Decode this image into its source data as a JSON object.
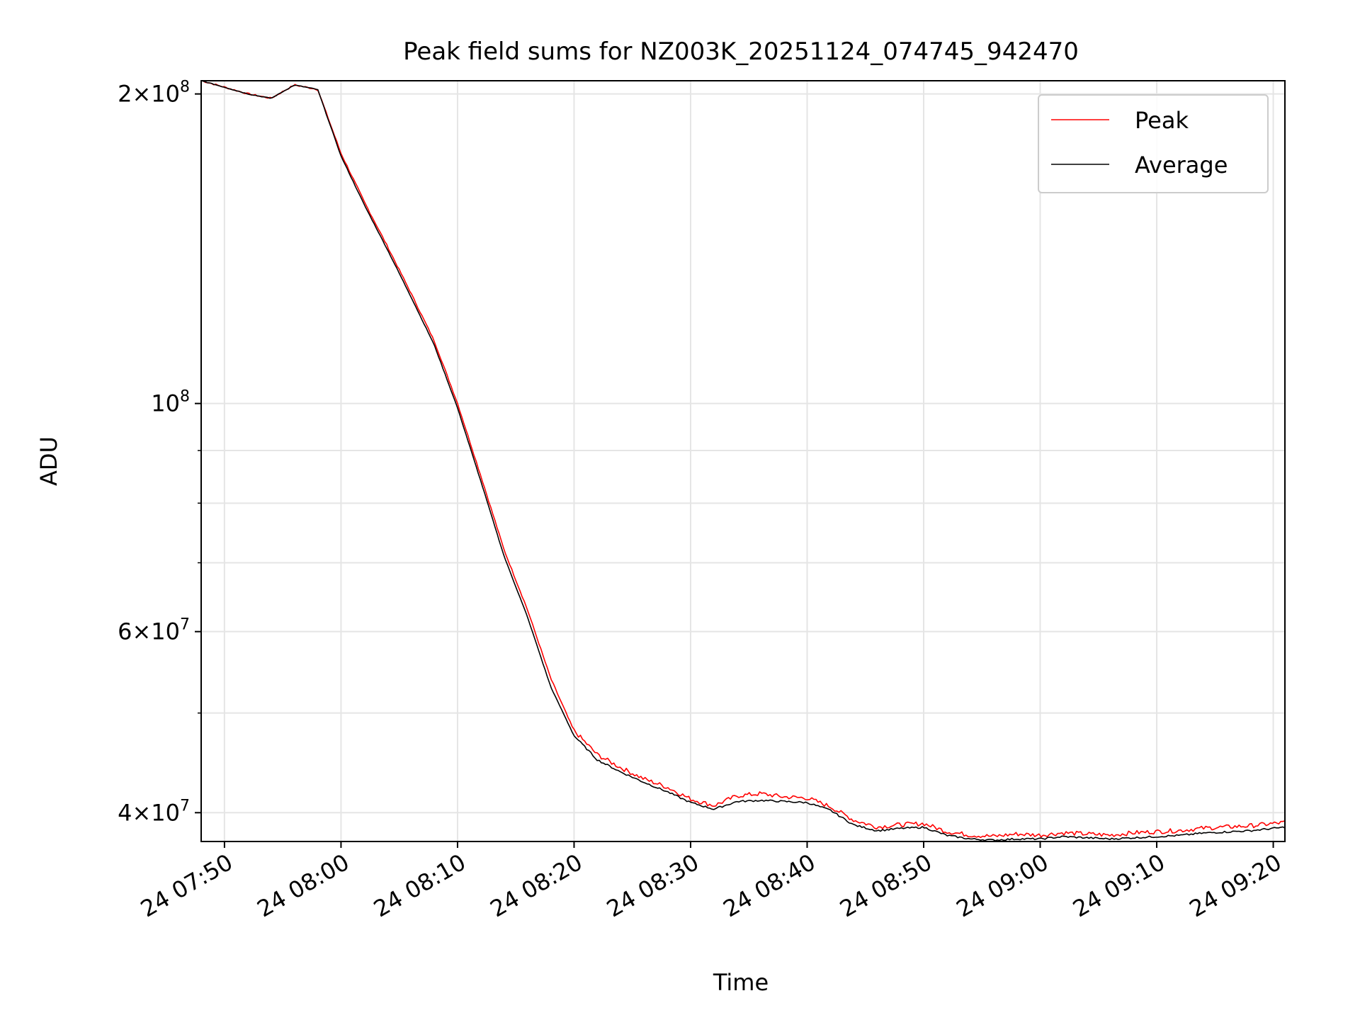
{
  "chart_data": {
    "type": "line",
    "title": "Peak field sums for NZ003K_20251124_074745_942470",
    "xlabel": "Time",
    "ylabel": "ADU",
    "yscale": "log",
    "xlim": [
      "07:48",
      "09:21"
    ],
    "ylim": [
      37500000,
      206000000
    ],
    "x_ticks": [
      "24 07:50",
      "24 08:00",
      "24 08:10",
      "24 08:20",
      "24 08:30",
      "24 08:40",
      "24 08:50",
      "24 09:00",
      "24 09:10",
      "24 09:20"
    ],
    "y_major_ticks": [
      {
        "value": 200000000,
        "mantissa": "2",
        "exp": "8"
      },
      {
        "value": 100000000,
        "mantissa": "",
        "exp": "8"
      },
      {
        "value": 60000000,
        "mantissa": "6",
        "exp": "7"
      },
      {
        "value": 40000000,
        "mantissa": "4",
        "exp": "7"
      }
    ],
    "y_minor_ticks": [
      50000000,
      70000000,
      80000000,
      90000000
    ],
    "grid": true,
    "legend": {
      "position": "top-right",
      "entries": [
        "Peak",
        "Average"
      ]
    },
    "colors": {
      "Peak": "#ff0000",
      "Average": "#000000",
      "grid": "#e5e5e5"
    },
    "series": [
      {
        "name": "Peak",
        "x": [
          "07:48",
          "07:50",
          "07:52",
          "07:54",
          "07:56",
          "07:58",
          "08:00",
          "08:02",
          "08:04",
          "08:06",
          "08:08",
          "08:10",
          "08:12",
          "08:14",
          "08:16",
          "08:18",
          "08:20",
          "08:22",
          "08:24",
          "08:26",
          "08:28",
          "08:30",
          "08:32",
          "08:34",
          "08:36",
          "08:38",
          "08:40",
          "08:42",
          "08:44",
          "08:46",
          "08:48",
          "08:50",
          "08:52",
          "08:54",
          "08:56",
          "08:58",
          "09:00",
          "09:02",
          "09:04",
          "09:06",
          "09:08",
          "09:10",
          "09:12",
          "09:14",
          "09:16",
          "09:18",
          "09:20",
          "09:21"
        ],
        "y": [
          206000000,
          203000000,
          200000000,
          198000000,
          204000000,
          202000000,
          175000000,
          157000000,
          142000000,
          128000000,
          115000000,
          100000000,
          85000000,
          72000000,
          63000000,
          54000000,
          48000000,
          45500000,
          44200000,
          43100000,
          42300000,
          41200000,
          40600000,
          41500000,
          41700000,
          41400000,
          41300000,
          40500000,
          39300000,
          38700000,
          38900000,
          39000000,
          38300000,
          38000000,
          37900000,
          38100000,
          38000000,
          38200000,
          38100000,
          38000000,
          38200000,
          38300000,
          38400000,
          38600000,
          38700000,
          38800000,
          39000000,
          39100000
        ]
      },
      {
        "name": "Average",
        "x": [
          "07:48",
          "07:50",
          "07:52",
          "07:54",
          "07:56",
          "07:58",
          "08:00",
          "08:02",
          "08:04",
          "08:06",
          "08:08",
          "08:10",
          "08:12",
          "08:14",
          "08:16",
          "08:18",
          "08:20",
          "08:22",
          "08:24",
          "08:26",
          "08:28",
          "08:30",
          "08:32",
          "08:34",
          "08:36",
          "08:38",
          "08:40",
          "08:42",
          "08:44",
          "08:46",
          "08:48",
          "08:50",
          "08:52",
          "08:54",
          "08:56",
          "08:58",
          "09:00",
          "09:02",
          "09:04",
          "09:06",
          "09:08",
          "09:10",
          "09:12",
          "09:14",
          "09:16",
          "09:18",
          "09:20",
          "09:21"
        ],
        "y": [
          206000000,
          203000000,
          200000000,
          198000000,
          204000000,
          202000000,
          174000000,
          156000000,
          141000000,
          127000000,
          114000000,
          99000000,
          84000000,
          71000000,
          62000000,
          53000000,
          47500000,
          45000000,
          43800000,
          42800000,
          41900000,
          40900000,
          40300000,
          41000000,
          41100000,
          41000000,
          40900000,
          40200000,
          38900000,
          38400000,
          38600000,
          38700000,
          38000000,
          37700000,
          37600000,
          37700000,
          37700000,
          37900000,
          37800000,
          37700000,
          37800000,
          37900000,
          38000000,
          38200000,
          38300000,
          38400000,
          38600000,
          38700000
        ]
      }
    ]
  }
}
